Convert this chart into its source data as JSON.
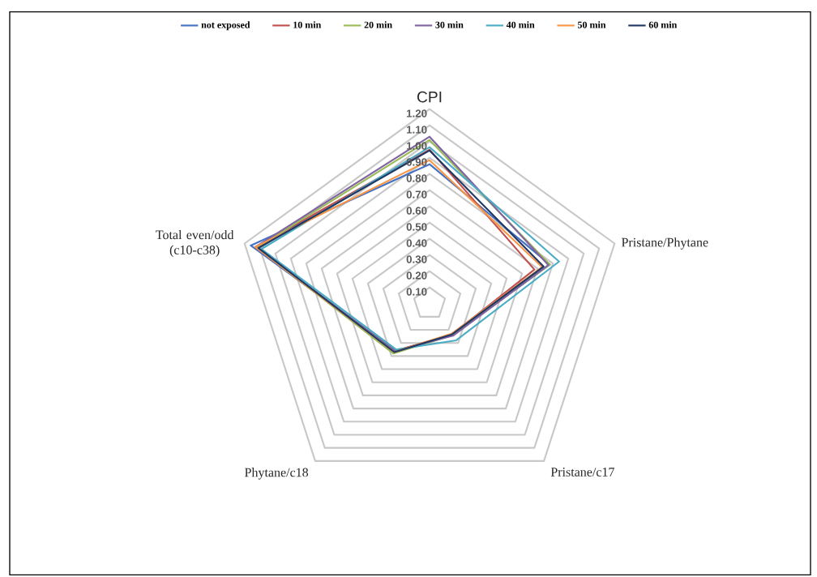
{
  "chart_data": {
    "type": "radar",
    "categories": [
      "CPI",
      "Pristane/Phytane",
      "Pristane/c17",
      "Phytane/c18",
      "Total even/odd (c10-c38)"
    ],
    "series": [
      {
        "name": "not exposed",
        "color": "#4472c4",
        "values": [
          0.86,
          0.78,
          0.24,
          0.36,
          1.16
        ]
      },
      {
        "name": "10 min",
        "color": "#c0504d",
        "values": [
          0.95,
          0.68,
          0.235,
          0.36,
          1.13
        ]
      },
      {
        "name": "20 min",
        "color": "#9bbb59",
        "values": [
          1.01,
          0.78,
          0.24,
          0.38,
          1.12
        ]
      },
      {
        "name": "30 min",
        "color": "#8064a2",
        "values": [
          1.03,
          0.77,
          0.245,
          0.36,
          1.13
        ]
      },
      {
        "name": "40 min",
        "color": "#4bacc6",
        "values": [
          0.965,
          0.84,
          0.28,
          0.35,
          1.09
        ]
      },
      {
        "name": "50 min",
        "color": "#f79646",
        "values": [
          0.885,
          0.73,
          0.23,
          0.37,
          1.13
        ]
      },
      {
        "name": "60 min",
        "color": "#1f3864",
        "values": [
          0.945,
          0.74,
          0.235,
          0.37,
          1.11
        ]
      }
    ],
    "ylim": [
      0,
      1.2
    ],
    "yticks": [
      {
        "value": 0.1,
        "label": "0.10"
      },
      {
        "value": 0.2,
        "label": "0.20"
      },
      {
        "value": 0.3,
        "label": "0.30"
      },
      {
        "value": 0.4,
        "label": "0.40"
      },
      {
        "value": 0.5,
        "label": "0.50"
      },
      {
        "value": 0.6,
        "label": "0.60"
      },
      {
        "value": 0.7,
        "label": "0.70"
      },
      {
        "value": 0.8,
        "label": "0.80"
      },
      {
        "value": 0.9,
        "label": "0.90"
      },
      {
        "value": 1.0,
        "label": "1.00"
      },
      {
        "value": 1.1,
        "label": "1.10"
      },
      {
        "value": 1.2,
        "label": "1.20"
      }
    ],
    "grid": true,
    "legend": "top"
  }
}
